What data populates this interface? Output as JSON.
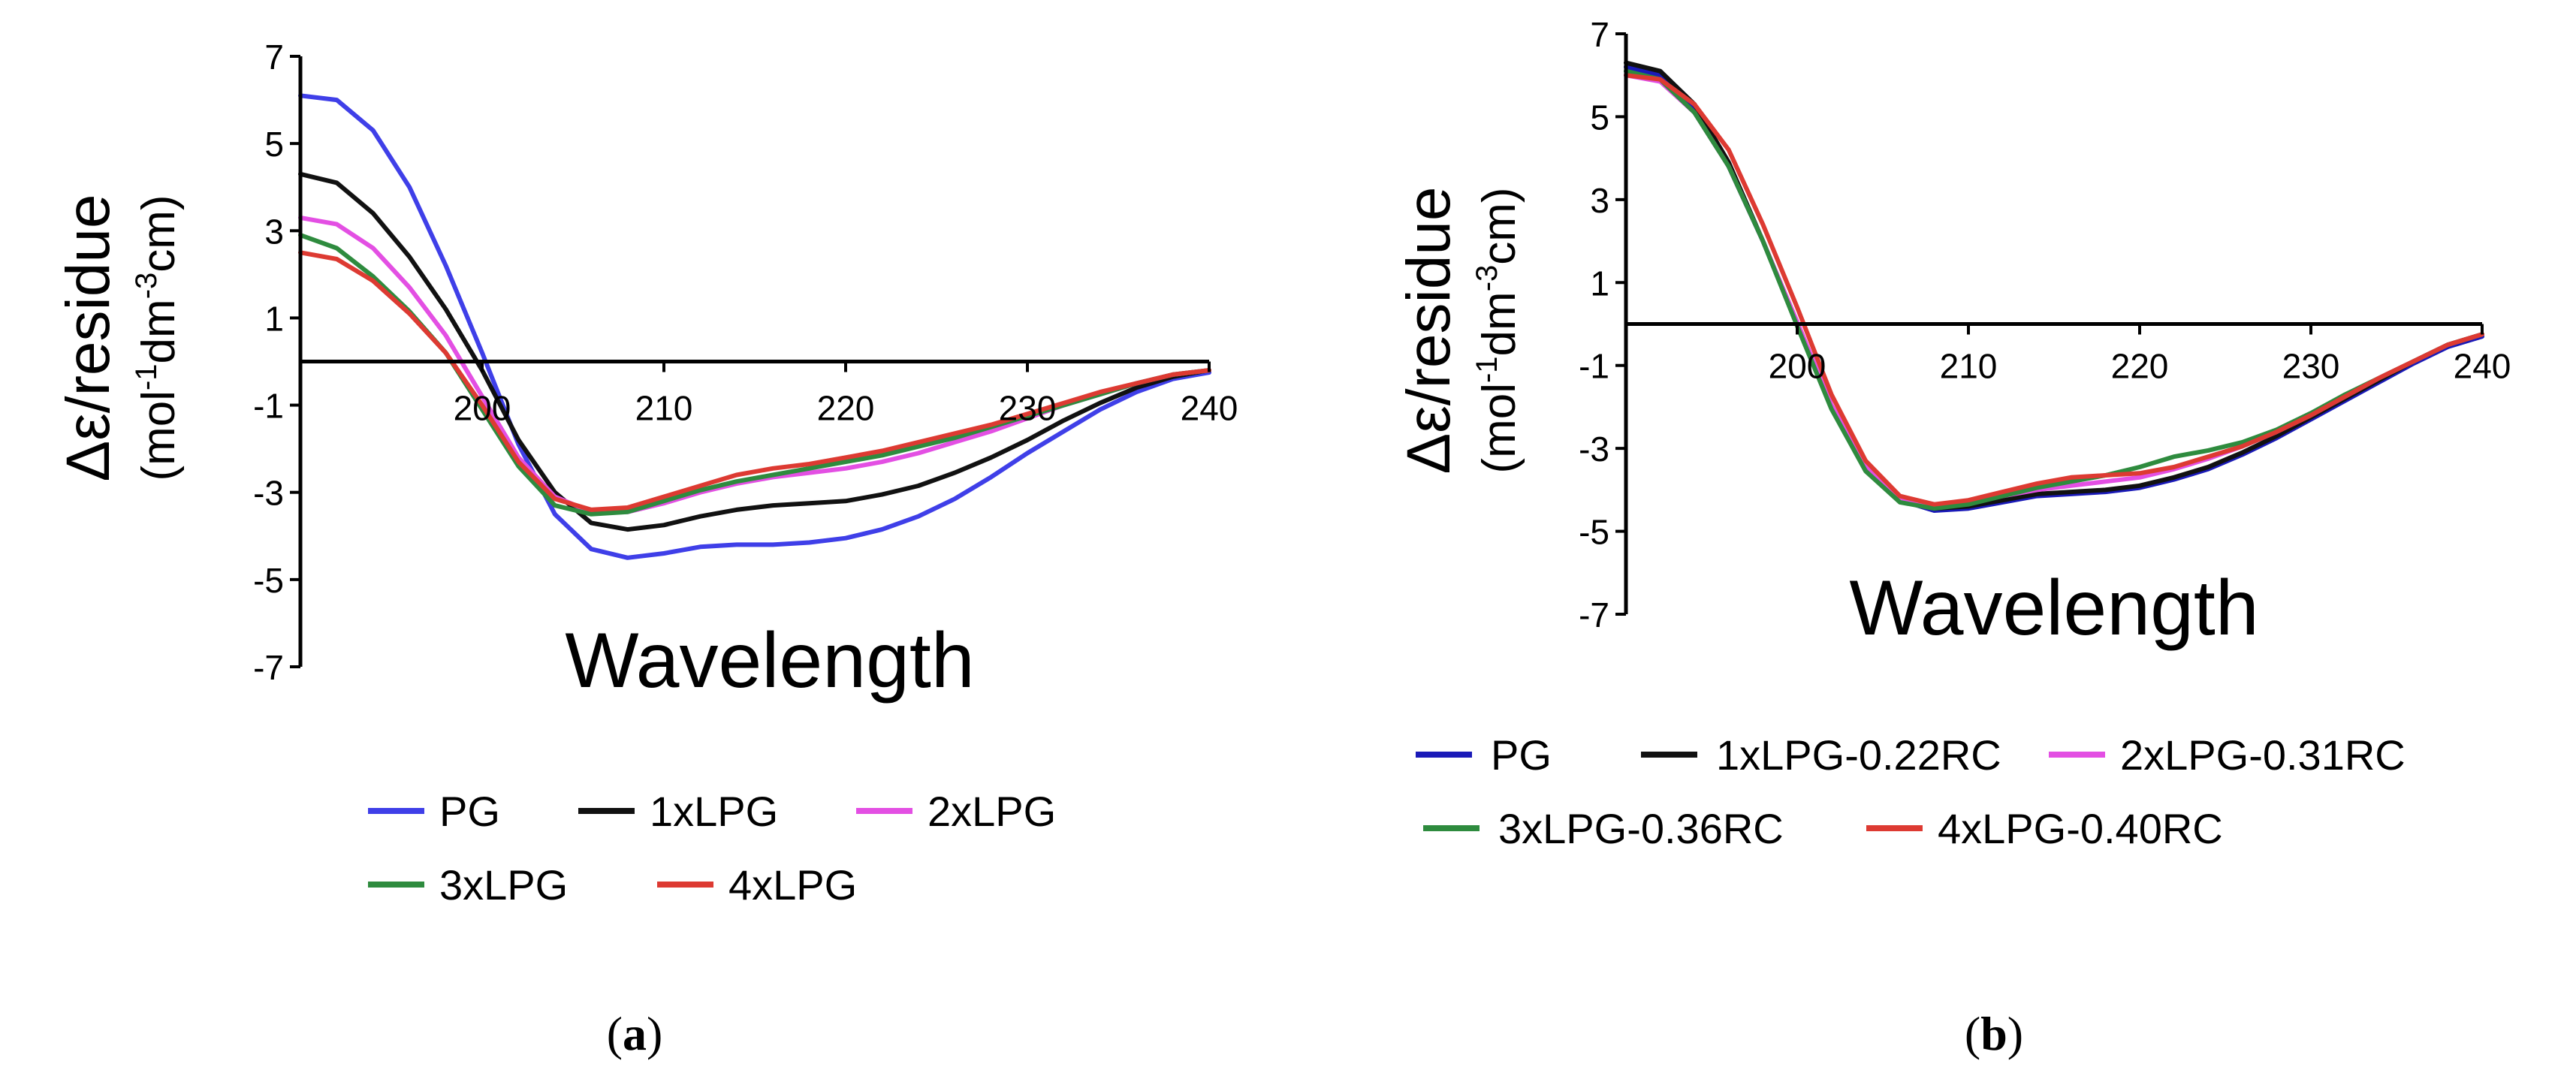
{
  "figure": {
    "panel_labels": [
      {
        "open": "(",
        "letter": "a",
        "close": ")"
      },
      {
        "open": "(",
        "letter": "b",
        "close": ")"
      }
    ]
  },
  "chart_data": [
    {
      "type": "line",
      "panel": "a",
      "title": "",
      "xlabel": "Wavelength",
      "ylabel": "Δε/residue",
      "ylabel_unit": {
        "a": "(mol",
        "b": "-1",
        "c": "dm",
        "d": "-3",
        "e": "cm)"
      },
      "xlim": [
        190,
        240
      ],
      "ylim": [
        -7,
        7
      ],
      "xticks": [
        200,
        210,
        220,
        230,
        240
      ],
      "xtick_labels": [
        "200",
        "210",
        "220",
        "230",
        "240"
      ],
      "yticks": [
        7,
        5,
        3,
        1,
        -1,
        -3,
        -5,
        -7
      ],
      "ytick_labels": [
        "7",
        "5",
        "3",
        "1",
        "-1",
        "-3",
        "-5",
        "-7"
      ],
      "x": [
        190,
        192,
        194,
        196,
        198,
        200,
        202,
        204,
        206,
        208,
        210,
        212,
        214,
        216,
        218,
        220,
        222,
        224,
        226,
        228,
        230,
        232,
        234,
        236,
        238,
        240
      ],
      "legend_position": "bottom",
      "series": [
        {
          "name": "PG",
          "color": "#3f3fe8",
          "values": [
            6.1,
            6.0,
            5.3,
            4.0,
            2.2,
            0.2,
            -1.9,
            -3.5,
            -4.3,
            -4.5,
            -4.4,
            -4.25,
            -4.2,
            -4.2,
            -4.15,
            -4.05,
            -3.85,
            -3.55,
            -3.15,
            -2.65,
            -2.1,
            -1.6,
            -1.1,
            -0.7,
            -0.4,
            -0.25
          ]
        },
        {
          "name": "1xLPG",
          "color": "#111111",
          "values": [
            4.3,
            4.1,
            3.4,
            2.4,
            1.2,
            -0.2,
            -1.8,
            -3.0,
            -3.7,
            -3.85,
            -3.75,
            -3.55,
            -3.4,
            -3.3,
            -3.25,
            -3.2,
            -3.05,
            -2.85,
            -2.55,
            -2.2,
            -1.8,
            -1.35,
            -0.95,
            -0.6,
            -0.35,
            -0.2
          ]
        },
        {
          "name": "2xLPG",
          "color": "#e34fe3",
          "values": [
            3.3,
            3.15,
            2.6,
            1.7,
            0.6,
            -0.8,
            -2.2,
            -3.1,
            -3.45,
            -3.45,
            -3.25,
            -3.0,
            -2.8,
            -2.65,
            -2.55,
            -2.45,
            -2.3,
            -2.1,
            -1.85,
            -1.6,
            -1.3,
            -1.0,
            -0.75,
            -0.5,
            -0.3,
            -0.2
          ]
        },
        {
          "name": "3xLPG",
          "color": "#2e8b3e",
          "values": [
            2.9,
            2.6,
            1.95,
            1.15,
            0.2,
            -1.1,
            -2.4,
            -3.3,
            -3.5,
            -3.45,
            -3.2,
            -2.95,
            -2.75,
            -2.6,
            -2.45,
            -2.3,
            -2.15,
            -1.95,
            -1.75,
            -1.5,
            -1.25,
            -1.0,
            -0.75,
            -0.5,
            -0.3,
            -0.2
          ]
        },
        {
          "name": "4xLPG",
          "color": "#dd3a32",
          "values": [
            2.5,
            2.35,
            1.85,
            1.1,
            0.2,
            -1.0,
            -2.3,
            -3.15,
            -3.4,
            -3.35,
            -3.1,
            -2.85,
            -2.6,
            -2.45,
            -2.35,
            -2.2,
            -2.05,
            -1.85,
            -1.65,
            -1.45,
            -1.2,
            -0.95,
            -0.7,
            -0.5,
            -0.3,
            -0.2
          ]
        }
      ]
    },
    {
      "type": "line",
      "panel": "b",
      "title": "",
      "xlabel": "Wavelength",
      "ylabel": "Δε/residue",
      "ylabel_unit": {
        "a": "(mol",
        "b": "-1",
        "c": "dm",
        "d": "-3",
        "e": "cm)"
      },
      "xlim": [
        190,
        240
      ],
      "ylim": [
        -7,
        7
      ],
      "xticks": [
        200,
        210,
        220,
        230,
        240
      ],
      "xtick_labels": [
        "200",
        "210",
        "220",
        "230",
        "240"
      ],
      "yticks": [
        7,
        5,
        3,
        1,
        -1,
        -3,
        -5,
        -7
      ],
      "ytick_labels": [
        "7",
        "5",
        "3",
        "1",
        "-1",
        "-3",
        "-5",
        "-7"
      ],
      "x": [
        190,
        192,
        194,
        196,
        198,
        200,
        202,
        204,
        206,
        208,
        210,
        212,
        214,
        216,
        218,
        220,
        222,
        224,
        226,
        228,
        230,
        232,
        234,
        236,
        238,
        240
      ],
      "legend_position": "bottom",
      "series": [
        {
          "name": "PG",
          "color": "#1a1ab8",
          "values": [
            6.2,
            6.0,
            5.2,
            3.8,
            2.0,
            0.0,
            -2.0,
            -3.5,
            -4.25,
            -4.5,
            -4.45,
            -4.3,
            -4.15,
            -4.1,
            -4.05,
            -3.95,
            -3.75,
            -3.5,
            -3.15,
            -2.75,
            -2.3,
            -1.85,
            -1.4,
            -0.95,
            -0.55,
            -0.3
          ]
        },
        {
          "name": "1xLPG-0.22RC",
          "color": "#111111",
          "values": [
            6.3,
            6.1,
            5.3,
            3.9,
            2.0,
            0.0,
            -2.0,
            -3.5,
            -4.25,
            -4.45,
            -4.4,
            -4.25,
            -4.1,
            -4.05,
            -4.0,
            -3.9,
            -3.7,
            -3.45,
            -3.1,
            -2.7,
            -2.25,
            -1.8,
            -1.35,
            -0.9,
            -0.5,
            -0.25
          ]
        },
        {
          "name": "2xLPG-0.31RC",
          "color": "#e34fe3",
          "values": [
            6.0,
            5.85,
            5.1,
            3.8,
            2.0,
            0.05,
            -1.95,
            -3.4,
            -4.2,
            -4.4,
            -4.3,
            -4.15,
            -4.0,
            -3.9,
            -3.8,
            -3.7,
            -3.5,
            -3.25,
            -2.95,
            -2.6,
            -2.2,
            -1.75,
            -1.3,
            -0.9,
            -0.5,
            -0.25
          ]
        },
        {
          "name": "3xLPG-0.36RC",
          "color": "#2e8b3e",
          "values": [
            6.1,
            5.9,
            5.1,
            3.8,
            2.0,
            -0.05,
            -2.05,
            -3.55,
            -4.3,
            -4.45,
            -4.35,
            -4.15,
            -3.95,
            -3.8,
            -3.65,
            -3.45,
            -3.2,
            -3.05,
            -2.85,
            -2.55,
            -2.15,
            -1.7,
            -1.3,
            -0.9,
            -0.5,
            -0.25
          ]
        },
        {
          "name": "4xLPG-0.40RC",
          "color": "#dd3a32",
          "values": [
            6.0,
            5.9,
            5.3,
            4.2,
            2.4,
            0.4,
            -1.7,
            -3.3,
            -4.15,
            -4.35,
            -4.25,
            -4.05,
            -3.85,
            -3.7,
            -3.65,
            -3.6,
            -3.45,
            -3.2,
            -2.95,
            -2.6,
            -2.2,
            -1.75,
            -1.3,
            -0.9,
            -0.5,
            -0.25
          ]
        }
      ]
    }
  ]
}
